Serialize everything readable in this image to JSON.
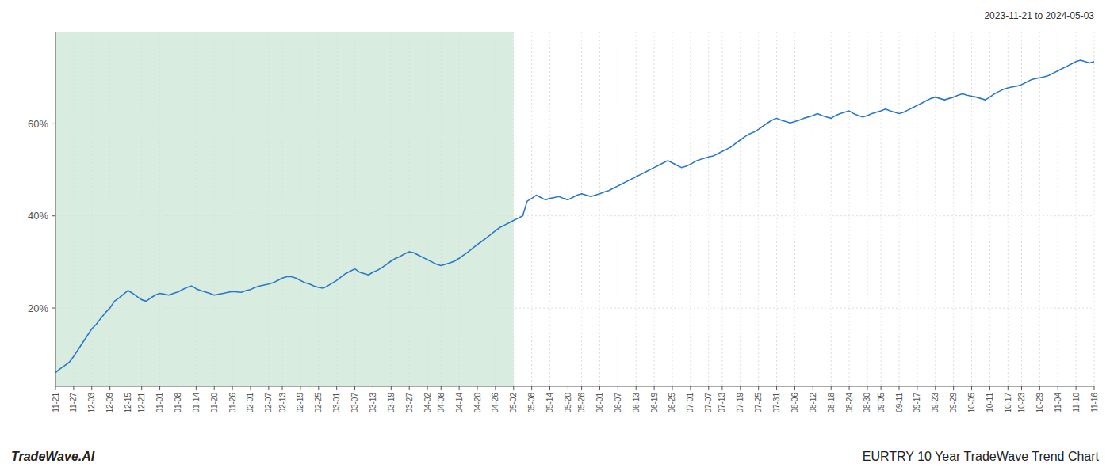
{
  "chart_data": {
    "type": "line",
    "title": "EURTRY 10 Year TradeWave Trend Chart",
    "subtitle": "2023-11-21 to 2024-05-03",
    "annotations": [
      {
        "text": "TradeWave.AI"
      }
    ],
    "color": "#2979c8",
    "grid": true,
    "ylim": [
      0.03,
      0.8
    ],
    "yticks": [
      {
        "value": 0.2,
        "label": "20%"
      },
      {
        "value": 0.4,
        "label": "40%"
      },
      {
        "value": 0.6,
        "label": "60%"
      }
    ],
    "shaded_region": {
      "from": "11-21",
      "to": "05-02",
      "color": "#d8ece0"
    },
    "categories": [
      "11-21",
      null,
      null,
      null,
      "11-27",
      null,
      null,
      null,
      "12-03",
      null,
      null,
      null,
      "12-09",
      null,
      null,
      null,
      "12-15",
      null,
      null,
      "12-21",
      null,
      null,
      null,
      "01-01",
      null,
      null,
      null,
      "01-08",
      null,
      null,
      null,
      "01-14",
      null,
      null,
      null,
      "01-20",
      null,
      null,
      null,
      "01-26",
      null,
      null,
      null,
      "02-01",
      null,
      null,
      null,
      "02-07",
      null,
      null,
      "02-13",
      null,
      null,
      null,
      "02-19",
      null,
      null,
      null,
      "02-25",
      null,
      null,
      null,
      "03-01",
      null,
      null,
      null,
      "03-07",
      null,
      null,
      null,
      "03-13",
      null,
      null,
      null,
      "03-19",
      null,
      null,
      null,
      "03-27",
      null,
      null,
      null,
      "04-02",
      null,
      null,
      "04-08",
      null,
      null,
      null,
      "04-14",
      null,
      null,
      null,
      "04-20",
      null,
      null,
      null,
      "04-26",
      null,
      null,
      null,
      "05-02",
      null,
      null,
      null,
      "05-08",
      null,
      null,
      null,
      "05-14",
      null,
      null,
      null,
      "05-20",
      null,
      null,
      "05-26",
      null,
      null,
      null,
      "06-01",
      null,
      null,
      null,
      "06-07",
      null,
      null,
      null,
      "06-13",
      null,
      null,
      null,
      "06-19",
      null,
      null,
      null,
      "06-25",
      null,
      null,
      null,
      "07-01",
      null,
      null,
      null,
      "07-07",
      null,
      null,
      "07-13",
      null,
      null,
      null,
      "07-19",
      null,
      null,
      null,
      "07-25",
      null,
      null,
      null,
      "07-31",
      null,
      null,
      null,
      "08-06",
      null,
      null,
      null,
      "08-12",
      null,
      null,
      null,
      "08-18",
      null,
      null,
      null,
      "08-24",
      null,
      null,
      null,
      "08-30",
      null,
      null,
      "09-05",
      null,
      null,
      null,
      "09-11",
      null,
      null,
      null,
      "09-17",
      null,
      null,
      null,
      "09-23",
      null,
      null,
      null,
      "09-29",
      null,
      null,
      null,
      "10-05",
      null,
      null,
      null,
      "10-11",
      null,
      null,
      null,
      "10-17",
      null,
      null,
      "10-23",
      null,
      null,
      null,
      "10-29",
      null,
      null,
      null,
      "11-04",
      null,
      null,
      null,
      "11-10",
      null,
      null,
      null,
      "11-16"
    ],
    "values": [
      0.06,
      0.068,
      0.075,
      0.082,
      0.095,
      0.11,
      0.125,
      0.14,
      0.155,
      0.165,
      0.178,
      0.19,
      0.2,
      0.215,
      0.222,
      0.23,
      0.238,
      0.232,
      0.225,
      0.218,
      0.215,
      0.222,
      0.228,
      0.232,
      0.23,
      0.228,
      0.232,
      0.235,
      0.24,
      0.245,
      0.248,
      0.242,
      0.238,
      0.235,
      0.232,
      0.228,
      0.23,
      0.232,
      0.234,
      0.236,
      0.235,
      0.234,
      0.238,
      0.24,
      0.245,
      0.248,
      0.25,
      0.252,
      0.255,
      0.26,
      0.265,
      0.268,
      0.268,
      0.265,
      0.26,
      0.255,
      0.252,
      0.248,
      0.245,
      0.243,
      0.248,
      0.254,
      0.26,
      0.268,
      0.275,
      0.28,
      0.285,
      0.278,
      0.275,
      0.272,
      0.278,
      0.282,
      0.288,
      0.295,
      0.302,
      0.308,
      0.312,
      0.318,
      0.322,
      0.32,
      0.315,
      0.31,
      0.305,
      0.3,
      0.295,
      0.292,
      0.295,
      0.298,
      0.302,
      0.308,
      0.315,
      0.322,
      0.33,
      0.338,
      0.345,
      0.352,
      0.36,
      0.368,
      0.375,
      0.38,
      0.385,
      0.39,
      0.395,
      0.4,
      0.432,
      0.438,
      0.445,
      0.44,
      0.435,
      0.438,
      0.44,
      0.442,
      0.438,
      0.435,
      0.44,
      0.445,
      0.448,
      0.445,
      0.442,
      0.445,
      0.448,
      0.452,
      0.455,
      0.46,
      0.465,
      0.47,
      0.475,
      0.48,
      0.485,
      0.49,
      0.495,
      0.5,
      0.505,
      0.51,
      0.515,
      0.52,
      0.515,
      0.51,
      0.505,
      0.508,
      0.512,
      0.518,
      0.522,
      0.525,
      0.528,
      0.53,
      0.535,
      0.54,
      0.545,
      0.55,
      0.558,
      0.565,
      0.572,
      0.578,
      0.582,
      0.588,
      0.595,
      0.602,
      0.608,
      0.612,
      0.608,
      0.605,
      0.602,
      0.605,
      0.608,
      0.612,
      0.615,
      0.618,
      0.622,
      0.618,
      0.615,
      0.612,
      0.618,
      0.622,
      0.625,
      0.628,
      0.622,
      0.618,
      0.615,
      0.618,
      0.622,
      0.625,
      0.628,
      0.632,
      0.628,
      0.625,
      0.622,
      0.625,
      0.63,
      0.635,
      0.64,
      0.645,
      0.65,
      0.655,
      0.658,
      0.655,
      0.652,
      0.655,
      0.658,
      0.662,
      0.665,
      0.662,
      0.66,
      0.658,
      0.655,
      0.652,
      0.658,
      0.665,
      0.67,
      0.675,
      0.678,
      0.68,
      0.682,
      0.685,
      0.69,
      0.695,
      0.698,
      0.7,
      0.702,
      0.705,
      0.71,
      0.715,
      0.72,
      0.725,
      0.73,
      0.735,
      0.738,
      0.735,
      0.732,
      0.735
    ]
  }
}
